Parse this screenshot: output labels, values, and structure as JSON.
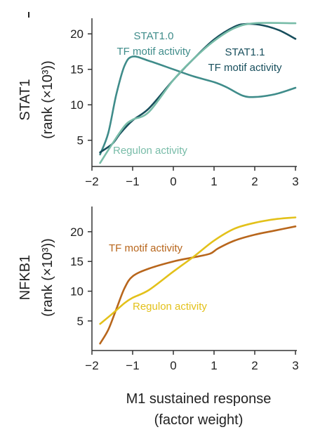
{
  "chart_data": [
    {
      "type": "line",
      "panel": "top",
      "title": "",
      "xlabel": "",
      "ylabel_line1": "STAT1",
      "ylabel_line2": "(rank (×10³))",
      "xlim": [
        -2,
        3
      ],
      "ylim": [
        2,
        22
      ],
      "xticks": [
        "-2",
        "-1",
        "0",
        "1",
        "2",
        "3"
      ],
      "yticks": [
        "5",
        "10",
        "15",
        "20"
      ],
      "grid": false,
      "legend": "inline",
      "series": [
        {
          "name": "STAT1.0 TF motif activity",
          "label_lines": [
            "STAT1.0",
            "TF motif activity"
          ],
          "color": "#3f8c8a",
          "points": [
            [
              -1.8,
              3.0
            ],
            [
              -1.6,
              6.0
            ],
            [
              -1.4,
              11.5
            ],
            [
              -1.2,
              15.5
            ],
            [
              -1.0,
              16.8
            ],
            [
              -0.6,
              16.2
            ],
            [
              0.0,
              15.0
            ],
            [
              0.5,
              14.0
            ],
            [
              1.0,
              13.2
            ],
            [
              1.3,
              12.5
            ],
            [
              1.7,
              11.3
            ],
            [
              2.0,
              11.1
            ],
            [
              2.5,
              11.5
            ],
            [
              3.0,
              12.4
            ]
          ]
        },
        {
          "name": "STAT1.1 TF motif activity",
          "label_lines": [
            "STAT1.1",
            "TF motif activity"
          ],
          "color": "#174e5c",
          "points": [
            [
              -1.8,
              3.3
            ],
            [
              -1.5,
              4.5
            ],
            [
              -1.3,
              6.0
            ],
            [
              -1.0,
              7.8
            ],
            [
              -0.6,
              9.5
            ],
            [
              0.0,
              13.5
            ],
            [
              0.5,
              16.5
            ],
            [
              1.0,
              19.2
            ],
            [
              1.5,
              21.0
            ],
            [
              1.8,
              21.4
            ],
            [
              2.2,
              21.2
            ],
            [
              2.6,
              20.5
            ],
            [
              3.0,
              19.3
            ]
          ]
        },
        {
          "name": "Regulon activity",
          "label_lines": [
            "Regulon activity"
          ],
          "color": "#78bca8",
          "points": [
            [
              -1.8,
              1.8
            ],
            [
              -1.5,
              4.5
            ],
            [
              -1.2,
              7.0
            ],
            [
              -1.0,
              7.9
            ],
            [
              -0.6,
              9.0
            ],
            [
              0.0,
              13.5
            ],
            [
              0.5,
              16.5
            ],
            [
              1.0,
              19.0
            ],
            [
              1.5,
              20.8
            ],
            [
              2.0,
              21.5
            ],
            [
              3.0,
              21.5
            ]
          ]
        }
      ]
    },
    {
      "type": "line",
      "panel": "bottom",
      "title": "",
      "xlabel_line1": "M1 sustained response",
      "xlabel_line2": "(factor weight)",
      "ylabel_line1": "NFKB1",
      "ylabel_line2": "(rank (×10³))",
      "xlim": [
        -2,
        3
      ],
      "ylim": [
        0.5,
        24
      ],
      "xticks": [
        "-2",
        "-1",
        "0",
        "1",
        "2",
        "3"
      ],
      "yticks": [
        "5",
        "10",
        "15",
        "20"
      ],
      "grid": false,
      "legend": "inline",
      "series": [
        {
          "name": "TF motif activity",
          "label_lines": [
            "TF motif activity"
          ],
          "color": "#b8661c",
          "points": [
            [
              -1.8,
              1.2
            ],
            [
              -1.6,
              3.5
            ],
            [
              -1.4,
              7.0
            ],
            [
              -1.2,
              10.5
            ],
            [
              -1.0,
              12.5
            ],
            [
              -0.6,
              13.8
            ],
            [
              0.0,
              15.0
            ],
            [
              0.5,
              15.7
            ],
            [
              0.9,
              16.3
            ],
            [
              1.1,
              17.2
            ],
            [
              1.5,
              18.5
            ],
            [
              2.0,
              19.5
            ],
            [
              2.5,
              20.2
            ],
            [
              3.0,
              20.9
            ]
          ]
        },
        {
          "name": "Regulon activity",
          "label_lines": [
            "Regulon activity"
          ],
          "color": "#e3c11a",
          "points": [
            [
              -1.8,
              4.5
            ],
            [
              -1.5,
              6.2
            ],
            [
              -1.2,
              8.0
            ],
            [
              -1.0,
              8.9
            ],
            [
              -0.6,
              10.2
            ],
            [
              0.0,
              13.3
            ],
            [
              0.5,
              15.8
            ],
            [
              1.0,
              18.5
            ],
            [
              1.5,
              20.5
            ],
            [
              2.0,
              21.5
            ],
            [
              2.5,
              22.1
            ],
            [
              3.0,
              22.4
            ]
          ]
        }
      ]
    }
  ]
}
